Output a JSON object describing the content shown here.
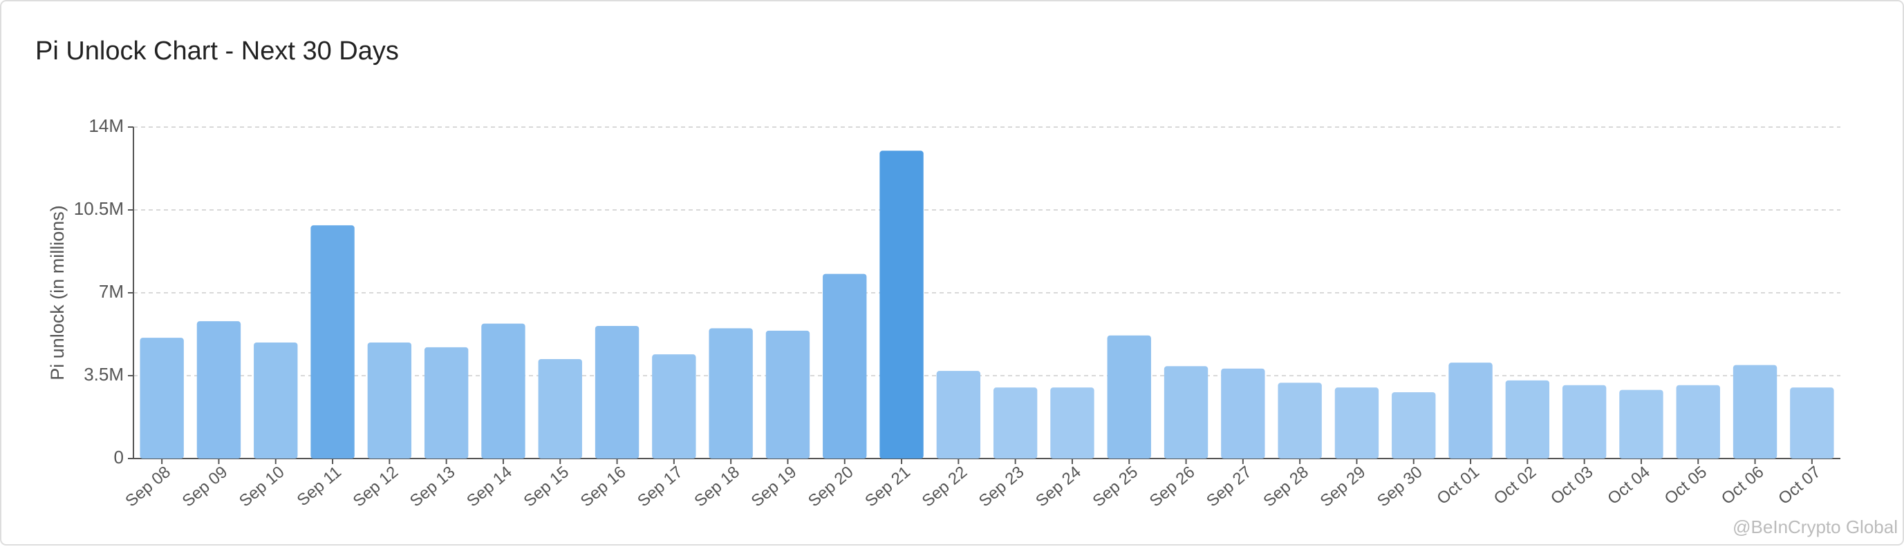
{
  "chart_data": {
    "type": "bar",
    "title": "Pi Unlock Chart - Next 30 Days",
    "y_label": "Pi unlock (in millions)",
    "watermark": "@BeInCrypto Global",
    "categories": [
      "Sep 08",
      "Sep 09",
      "Sep 10",
      "Sep 11",
      "Sep 12",
      "Sep 13",
      "Sep 14",
      "Sep 15",
      "Sep 16",
      "Sep 17",
      "Sep 18",
      "Sep 19",
      "Sep 20",
      "Sep 21",
      "Sep 22",
      "Sep 23",
      "Sep 24",
      "Sep 25",
      "Sep 26",
      "Sep 27",
      "Sep 28",
      "Sep 29",
      "Sep 30",
      "Oct 01",
      "Oct 02",
      "Oct 03",
      "Oct 04",
      "Oct 05",
      "Oct 06",
      "Oct 07"
    ],
    "values": [
      5.1,
      5.8,
      4.9,
      9.85,
      4.9,
      4.7,
      5.7,
      4.2,
      5.6,
      4.4,
      5.5,
      5.4,
      7.8,
      13.0,
      3.7,
      3.0,
      3.0,
      5.2,
      3.9,
      3.8,
      3.2,
      3.0,
      2.8,
      4.05,
      3.3,
      3.1,
      2.9,
      3.1,
      3.95,
      3.0
    ],
    "color_scale": [
      "#a3cbf2",
      "#4f9de3"
    ],
    "ylim": [
      0,
      14
    ],
    "yticks": [
      0,
      {
        "value": 3.5,
        "label": "3.5M"
      },
      {
        "value": 7,
        "label": "7M"
      },
      {
        "value": 10.5,
        "label": "10.5M"
      },
      {
        "value": 14,
        "label": "14M"
      }
    ],
    "grid": true
  }
}
